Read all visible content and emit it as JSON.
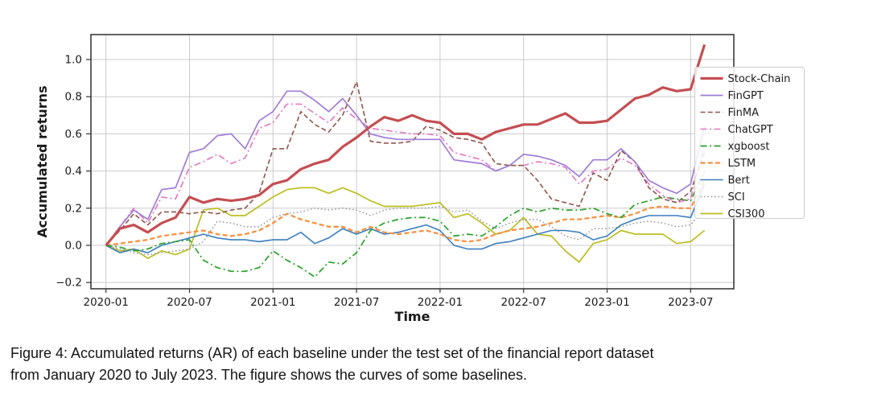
{
  "figure": {
    "caption_line1": "Figure 4: Accumulated returns (AR) of each baseline under the test set of the financial report dataset",
    "caption_line2": "from January 2020 to July 2023. The figure shows the curves of some baselines."
  },
  "chart_data": {
    "type": "line",
    "title": "",
    "xlabel": "Time",
    "ylabel": "Accumulated returns",
    "grid": true,
    "legend_position": "right",
    "ylim": [
      -0.235,
      1.13
    ],
    "x_tick_labels": [
      "2020-01",
      "2020-07",
      "2021-01",
      "2021-07",
      "2022-01",
      "2022-07",
      "2023-01",
      "2023-07"
    ],
    "x_tick_months": [
      0,
      6,
      12,
      18,
      24,
      30,
      36,
      42
    ],
    "y_tick_values": [
      -0.2,
      0.0,
      0.2,
      0.4,
      0.6,
      0.8,
      1.0
    ],
    "y_tick_labels": [
      "−0.2",
      "0.0",
      "0.2",
      "0.4",
      "0.6",
      "0.8",
      "1.0"
    ],
    "months": [
      "2020-01",
      "2020-02",
      "2020-03",
      "2020-04",
      "2020-05",
      "2020-06",
      "2020-07",
      "2020-08",
      "2020-09",
      "2020-10",
      "2020-11",
      "2020-12",
      "2021-01",
      "2021-02",
      "2021-03",
      "2021-04",
      "2021-05",
      "2021-06",
      "2021-07",
      "2021-08",
      "2021-09",
      "2021-10",
      "2021-11",
      "2021-12",
      "2022-01",
      "2022-02",
      "2022-03",
      "2022-04",
      "2022-05",
      "2022-06",
      "2022-07",
      "2022-08",
      "2022-09",
      "2022-10",
      "2022-11",
      "2022-12",
      "2023-01",
      "2023-02",
      "2023-03",
      "2023-04",
      "2023-05",
      "2023-06",
      "2023-07",
      "2023-08"
    ],
    "series": [
      {
        "name": "Stock-Chain",
        "color": "#c44e52",
        "style": "solid",
        "width": 3.2,
        "values": [
          0.0,
          0.09,
          0.11,
          0.07,
          0.12,
          0.15,
          0.26,
          0.23,
          0.25,
          0.24,
          0.25,
          0.27,
          0.33,
          0.35,
          0.41,
          0.44,
          0.46,
          0.53,
          0.58,
          0.64,
          0.69,
          0.67,
          0.7,
          0.67,
          0.66,
          0.6,
          0.6,
          0.57,
          0.61,
          0.63,
          0.65,
          0.65,
          0.68,
          0.71,
          0.66,
          0.66,
          0.67,
          0.73,
          0.79,
          0.81,
          0.85,
          0.83,
          0.84,
          1.08
        ]
      },
      {
        "name": "FinGPT",
        "color": "#a07cd6",
        "style": "solid",
        "width": 1.7,
        "values": [
          0.0,
          0.1,
          0.19,
          0.14,
          0.3,
          0.31,
          0.5,
          0.52,
          0.59,
          0.6,
          0.52,
          0.67,
          0.72,
          0.83,
          0.83,
          0.78,
          0.72,
          0.79,
          0.7,
          0.6,
          0.58,
          0.57,
          0.57,
          0.57,
          0.57,
          0.46,
          0.45,
          0.44,
          0.4,
          0.43,
          0.49,
          0.48,
          0.46,
          0.43,
          0.37,
          0.46,
          0.46,
          0.52,
          0.45,
          0.35,
          0.31,
          0.28,
          0.33,
          0.64
        ]
      },
      {
        "name": "FinMA",
        "color": "#8c564b",
        "style": "dashed",
        "width": 1.6,
        "values": [
          0.0,
          0.08,
          0.17,
          0.11,
          0.18,
          0.18,
          0.17,
          0.18,
          0.17,
          0.19,
          0.2,
          0.28,
          0.52,
          0.52,
          0.72,
          0.65,
          0.61,
          0.7,
          0.88,
          0.56,
          0.55,
          0.55,
          0.56,
          0.64,
          0.62,
          0.58,
          0.57,
          0.55,
          0.44,
          0.43,
          0.43,
          0.35,
          0.25,
          0.23,
          0.21,
          0.39,
          0.35,
          0.51,
          0.45,
          0.31,
          0.25,
          0.23,
          0.29,
          0.5
        ]
      },
      {
        "name": "ChatGPT",
        "color": "#e377c2",
        "style": "dashdot",
        "width": 1.6,
        "values": [
          0.0,
          0.1,
          0.2,
          0.12,
          0.26,
          0.25,
          0.42,
          0.45,
          0.49,
          0.44,
          0.47,
          0.63,
          0.66,
          0.76,
          0.76,
          0.71,
          0.66,
          0.74,
          0.68,
          0.63,
          0.62,
          0.61,
          0.6,
          0.6,
          0.59,
          0.5,
          0.48,
          0.46,
          0.4,
          0.43,
          0.43,
          0.45,
          0.44,
          0.42,
          0.33,
          0.4,
          0.41,
          0.47,
          0.43,
          0.33,
          0.27,
          0.23,
          0.25,
          0.55
        ]
      },
      {
        "name": "xgboost",
        "color": "#2ca02c",
        "style": "dashdot",
        "width": 1.7,
        "values": [
          0.0,
          -0.01,
          -0.03,
          -0.02,
          0.01,
          0.02,
          0.03,
          -0.08,
          -0.12,
          -0.14,
          -0.14,
          -0.12,
          -0.03,
          -0.08,
          -0.12,
          -0.17,
          -0.09,
          -0.1,
          -0.04,
          0.08,
          0.12,
          0.14,
          0.15,
          0.15,
          0.13,
          0.05,
          0.06,
          0.05,
          0.1,
          0.16,
          0.2,
          0.18,
          0.2,
          0.19,
          0.19,
          0.2,
          0.17,
          0.15,
          0.22,
          0.24,
          0.26,
          0.25,
          0.24,
          0.4
        ]
      },
      {
        "name": "LSTM",
        "color": "#f78f3e",
        "style": "dashed",
        "width": 2.2,
        "values": [
          0.0,
          0.01,
          0.02,
          0.03,
          0.05,
          0.06,
          0.07,
          0.08,
          0.06,
          0.05,
          0.06,
          0.08,
          0.12,
          0.17,
          0.14,
          0.12,
          0.1,
          0.1,
          0.07,
          0.1,
          0.07,
          0.06,
          0.07,
          0.08,
          0.06,
          0.03,
          0.02,
          0.03,
          0.06,
          0.08,
          0.09,
          0.1,
          0.12,
          0.14,
          0.14,
          0.15,
          0.16,
          0.15,
          0.17,
          0.2,
          0.21,
          0.2,
          0.2,
          0.35
        ]
      },
      {
        "name": "Bert",
        "color": "#3a7ebf",
        "style": "solid",
        "width": 1.6,
        "values": [
          0.0,
          -0.04,
          -0.02,
          -0.04,
          0.0,
          0.02,
          0.04,
          0.06,
          0.04,
          0.03,
          0.03,
          0.02,
          0.03,
          0.03,
          0.07,
          0.01,
          0.04,
          0.09,
          0.06,
          0.09,
          0.06,
          0.07,
          0.09,
          0.11,
          0.08,
          0.0,
          -0.02,
          -0.02,
          0.01,
          0.02,
          0.04,
          0.06,
          0.08,
          0.08,
          0.07,
          0.03,
          0.05,
          0.11,
          0.14,
          0.16,
          0.16,
          0.16,
          0.15,
          0.33
        ]
      },
      {
        "name": "SCI",
        "color": "#9a9a9a",
        "style": "dotted",
        "width": 1.5,
        "values": [
          0.0,
          -0.02,
          -0.04,
          -0.05,
          -0.04,
          -0.03,
          -0.02,
          0.02,
          0.13,
          0.12,
          0.1,
          0.1,
          0.15,
          0.17,
          0.18,
          0.2,
          0.19,
          0.2,
          0.19,
          0.16,
          0.19,
          0.2,
          0.2,
          0.2,
          0.21,
          0.18,
          0.19,
          0.13,
          0.09,
          0.12,
          0.14,
          0.14,
          0.1,
          0.05,
          0.03,
          0.09,
          0.09,
          0.1,
          0.12,
          0.13,
          0.12,
          0.1,
          0.11,
          0.2
        ]
      },
      {
        "name": "CSI300",
        "color": "#bcbd22",
        "style": "solid",
        "width": 1.7,
        "values": [
          0.0,
          -0.03,
          -0.02,
          -0.07,
          -0.03,
          -0.05,
          -0.02,
          0.19,
          0.2,
          0.16,
          0.16,
          0.21,
          0.26,
          0.3,
          0.31,
          0.31,
          0.28,
          0.31,
          0.28,
          0.24,
          0.21,
          0.21,
          0.21,
          0.22,
          0.23,
          0.15,
          0.17,
          0.12,
          0.06,
          0.08,
          0.15,
          0.06,
          0.05,
          -0.03,
          -0.09,
          0.01,
          0.03,
          0.08,
          0.06,
          0.06,
          0.06,
          0.01,
          0.02,
          0.08
        ]
      }
    ]
  }
}
